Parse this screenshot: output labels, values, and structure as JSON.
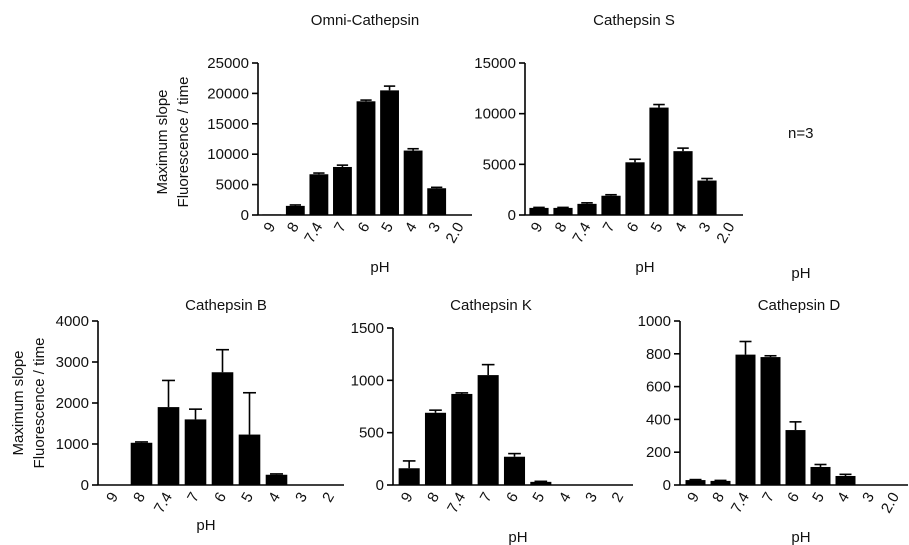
{
  "figure": {
    "n_note": "n=3",
    "orphan_xlabel": "pH",
    "shared_ylabel_line1": "Maximum slope",
    "shared_ylabel_line2": "Fluorescence / time"
  },
  "chart_data": [
    {
      "id": "omni",
      "type": "bar",
      "title": "Omni-Cathepsin",
      "xlabel": "pH",
      "ylabel": "Maximum slope Fluorescence / time",
      "categories": [
        "9",
        "8",
        "7.4",
        "7",
        "6",
        "5",
        "4",
        "3",
        "2.0"
      ],
      "values": [
        100,
        1500,
        6700,
        7900,
        18700,
        20500,
        10600,
        4400,
        0
      ],
      "errors": [
        0,
        150,
        200,
        300,
        200,
        700,
        300,
        150,
        0
      ],
      "yticks": [
        "0",
        "5000",
        "10000",
        "15000",
        "20000",
        "25000"
      ],
      "ylim": [
        0,
        25000
      ]
    },
    {
      "id": "catS",
      "type": "bar",
      "title": "Cathepsin S",
      "xlabel": "pH",
      "ylabel": "",
      "categories": [
        "9",
        "8",
        "7.4",
        "7",
        "6",
        "5",
        "4",
        "3",
        "2.0"
      ],
      "values": [
        700,
        700,
        1100,
        1900,
        5200,
        10600,
        6300,
        3400,
        0
      ],
      "errors": [
        50,
        50,
        100,
        100,
        300,
        300,
        300,
        200,
        0
      ],
      "yticks": [
        "0",
        "5000",
        "10000",
        "15000"
      ],
      "ylim": [
        0,
        15000
      ]
    },
    {
      "id": "catB",
      "type": "bar",
      "title": "Cathepsin B",
      "xlabel": "pH",
      "ylabel": "Maximum slope Fluorescence / time",
      "categories": [
        "9",
        "8",
        "7.4",
        "7",
        "6",
        "5",
        "4",
        "3",
        "2"
      ],
      "values": [
        0,
        1030,
        1900,
        1600,
        2750,
        1230,
        250,
        0,
        0
      ],
      "errors": [
        0,
        20,
        650,
        250,
        550,
        1020,
        20,
        0,
        0
      ],
      "yticks": [
        "0",
        "1000",
        "2000",
        "3000",
        "4000"
      ],
      "ylim": [
        0,
        4000
      ]
    },
    {
      "id": "catK",
      "type": "bar",
      "title": "Cathepsin K",
      "xlabel": "pH",
      "ylabel": "",
      "categories": [
        "9",
        "8",
        "7.4",
        "7",
        "6",
        "5",
        "4",
        "3",
        "2"
      ],
      "values": [
        160,
        690,
        870,
        1050,
        270,
        30,
        0,
        0,
        0
      ],
      "errors": [
        70,
        25,
        10,
        100,
        30,
        5,
        0,
        0,
        0
      ],
      "yticks": [
        "0",
        "500",
        "1000",
        "1500"
      ],
      "ylim": [
        0,
        1500
      ]
    },
    {
      "id": "catD",
      "type": "bar",
      "title": "Cathepsin D",
      "xlabel": "pH",
      "ylabel": "",
      "categories": [
        "9",
        "8",
        "7.4",
        "7",
        "6",
        "5",
        "4",
        "3",
        "2.0"
      ],
      "values": [
        30,
        25,
        795,
        780,
        335,
        110,
        55,
        0,
        0
      ],
      "errors": [
        3,
        3,
        80,
        8,
        50,
        15,
        10,
        0,
        0
      ],
      "yticks": [
        "0",
        "200",
        "400",
        "600",
        "800",
        "1000"
      ],
      "ylim": [
        0,
        1000
      ]
    }
  ]
}
